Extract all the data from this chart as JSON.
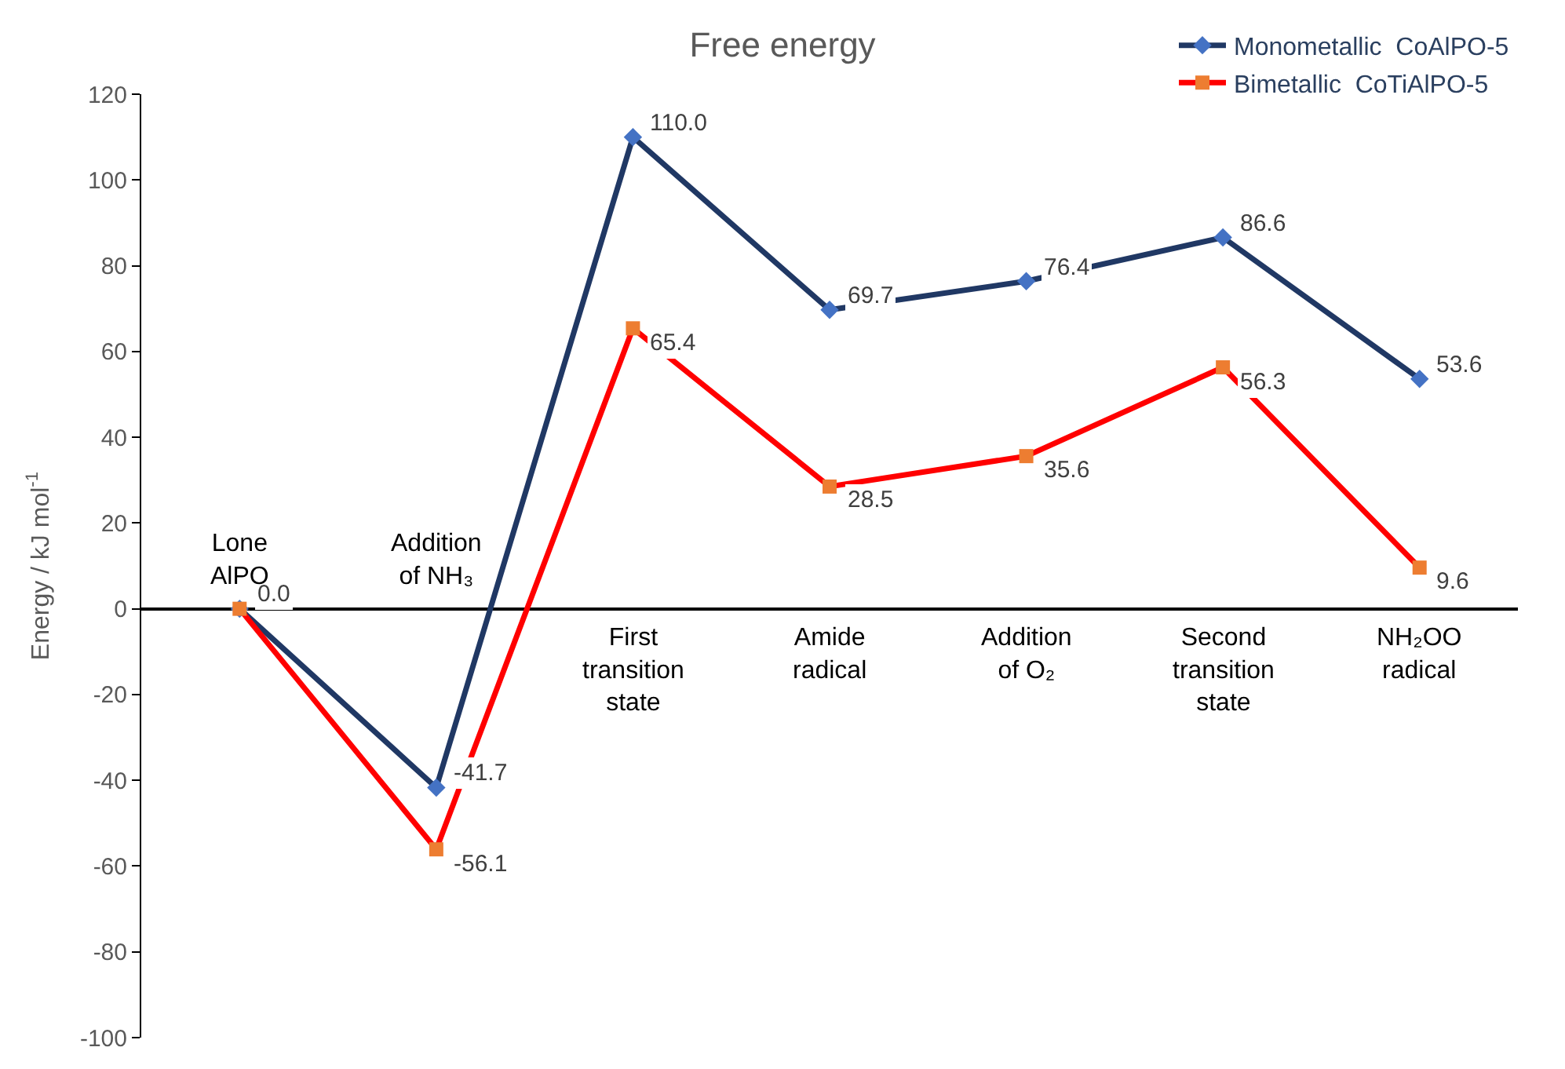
{
  "chart_data": {
    "type": "line",
    "title": "Free energy",
    "ylabel": "Energy / kJ mol$^{-1}$",
    "categories": [
      "Lone\nAlPO",
      "Addition\nof NH₃",
      "First\ntransition\nstate",
      "Amide\nradical",
      "Addition\nof O₂",
      "Second\ntransition\nstate",
      "NH₂OO\nradical"
    ],
    "series": [
      {
        "name": "Monometallic  CoAlPO-5",
        "color": "#203864",
        "colors": [
          "#4472c4",
          "#4472c4",
          "#4472c4",
          "#4472c4",
          "#4472c4",
          "#4472c4",
          "#4472c4"
        ],
        "marker": "diamond",
        "values": [
          0.0,
          -41.7,
          110.0,
          69.7,
          76.4,
          86.6,
          53.6
        ],
        "value_labels": [
          "0.0",
          "-41.7",
          "110.0",
          "69.7",
          "76.4",
          "86.6",
          "53.6"
        ]
      },
      {
        "name": "Bimetallic  CoTiAlPO-5",
        "color": "#ff0000",
        "colors": [
          "#ed7d31",
          "#ed7d31",
          "#ed7d31",
          "#ed7d31",
          "#ed7d31",
          "#ed7d31",
          "#ed7d31"
        ],
        "marker": "square",
        "values": [
          0.0,
          -56.1,
          65.4,
          28.5,
          35.6,
          56.3,
          9.6
        ],
        "value_labels": [
          null,
          "-56.1",
          "65.4",
          "28.5",
          "35.6",
          "56.3",
          "9.6"
        ]
      }
    ],
    "ylim": [
      -100,
      120
    ],
    "yticks": [
      -100,
      -80,
      -60,
      -40,
      -20,
      0,
      20,
      40,
      60,
      80,
      100,
      120
    ],
    "legend": "top right",
    "line_style": "solid"
  }
}
